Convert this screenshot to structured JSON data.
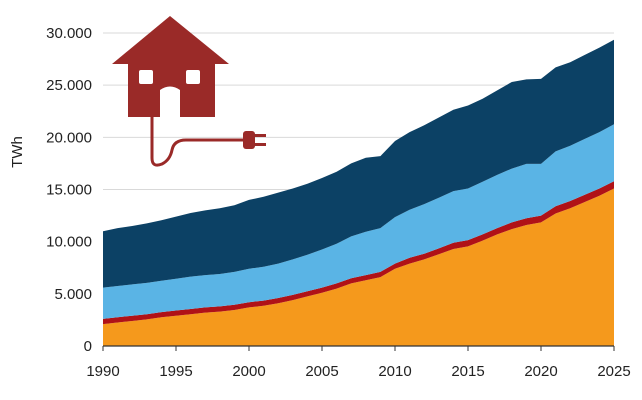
{
  "chart_data": {
    "type": "area",
    "stacked": true,
    "title": "",
    "xlabel": "",
    "ylabel": "TWh",
    "xlim": [
      1990,
      2025
    ],
    "ylim": [
      0,
      30000
    ],
    "grid": true,
    "legend": "none",
    "x_ticks": [
      "1990",
      "1995",
      "2000",
      "2005",
      "2010",
      "2015",
      "2020",
      "2025"
    ],
    "y_ticks": [
      "0",
      "5.000",
      "10.000",
      "15.000",
      "20.000",
      "25.000",
      "30.000"
    ],
    "x": [
      1990,
      1991,
      1992,
      1993,
      1994,
      1995,
      1996,
      1997,
      1998,
      1999,
      2000,
      2001,
      2002,
      2003,
      2004,
      2005,
      2006,
      2007,
      2008,
      2009,
      2010,
      2011,
      2012,
      2013,
      2014,
      2015,
      2016,
      2017,
      2018,
      2019,
      2020,
      2021,
      2022,
      2023,
      2024,
      2025
    ],
    "series": [
      {
        "color": "#f5991c",
        "values": [
          2100,
          2250,
          2400,
          2550,
          2750,
          2900,
          3050,
          3200,
          3300,
          3450,
          3700,
          3850,
          4100,
          4400,
          4750,
          5100,
          5500,
          6000,
          6300,
          6600,
          7400,
          7900,
          8300,
          8800,
          9300,
          9550,
          10100,
          10700,
          11200,
          11600,
          11850,
          12700,
          13200,
          13800,
          14400,
          15100
        ]
      },
      {
        "color": "#b01217",
        "values": [
          500,
          500,
          500,
          500,
          500,
          500,
          500,
          500,
          500,
          500,
          500,
          500,
          500,
          500,
          500,
          500,
          500,
          500,
          500,
          500,
          500,
          550,
          550,
          550,
          600,
          600,
          600,
          600,
          650,
          650,
          650,
          700,
          700,
          700,
          700,
          700
        ]
      },
      {
        "color": "#5ab4e5",
        "values": [
          3000,
          3000,
          3000,
          3000,
          3000,
          3050,
          3100,
          3100,
          3100,
          3150,
          3200,
          3250,
          3300,
          3400,
          3500,
          3650,
          3800,
          4000,
          4150,
          4200,
          4450,
          4600,
          4750,
          4850,
          4950,
          4950,
          5050,
          5100,
          5150,
          5200,
          4950,
          5250,
          5300,
          5350,
          5400,
          5450
        ]
      },
      {
        "color": "#0c4165",
        "values": [
          5400,
          5550,
          5600,
          5700,
          5800,
          5950,
          6100,
          6200,
          6300,
          6400,
          6600,
          6700,
          6800,
          6800,
          6800,
          6850,
          6900,
          7000,
          7100,
          6900,
          7300,
          7450,
          7550,
          7700,
          7800,
          7950,
          7950,
          8100,
          8300,
          8100,
          8150,
          8050,
          8000,
          8050,
          8100,
          8100
        ]
      }
    ]
  },
  "icons": {
    "house": "house-with-plug-icon",
    "house_color": "#9a2a28"
  }
}
